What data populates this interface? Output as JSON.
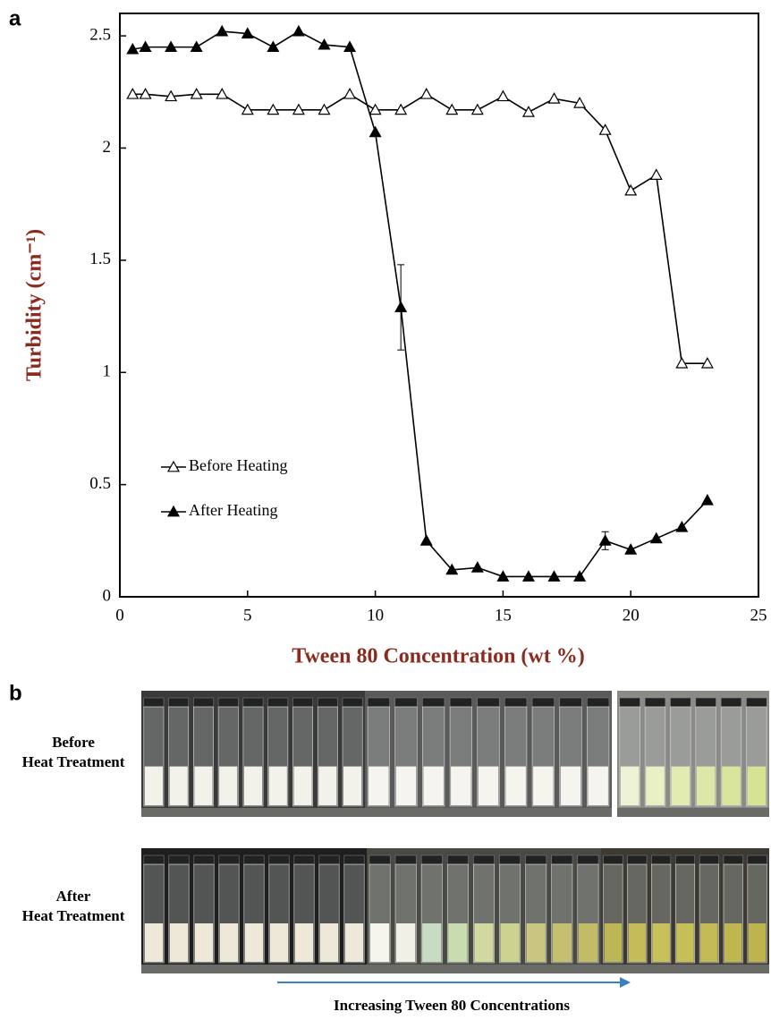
{
  "chart_data": {
    "type": "line",
    "panel_label": "a",
    "xlabel": "Tween 80  Concentration (wt %)",
    "ylabel": "Turbidity (cm⁻¹)",
    "xlim": [
      0,
      25
    ],
    "xticks": [
      0,
      5,
      10,
      15,
      20,
      25
    ],
    "ylim": [
      0,
      2.6
    ],
    "yticks": [
      0,
      0.5,
      1,
      1.5,
      2,
      2.5
    ],
    "grid": false,
    "legend": "lower-left",
    "x": [
      0.5,
      1,
      2,
      3,
      4,
      5,
      6,
      7,
      8,
      9,
      10,
      11,
      12,
      13,
      14,
      15,
      16,
      17,
      18,
      19,
      20,
      21,
      22,
      23
    ],
    "series": [
      {
        "name": "Before Heating",
        "color": "#000000",
        "marker": "open-triangle",
        "values": [
          2.24,
          2.24,
          2.23,
          2.24,
          2.24,
          2.17,
          2.17,
          2.17,
          2.17,
          2.24,
          2.17,
          2.17,
          2.24,
          2.17,
          2.17,
          2.23,
          2.16,
          2.22,
          2.2,
          2.08,
          1.81,
          1.88,
          1.04,
          1.04
        ]
      },
      {
        "name": "After Heating",
        "color": "#000000",
        "marker": "filled-triangle",
        "values": [
          2.44,
          2.45,
          2.45,
          2.45,
          2.52,
          2.51,
          2.45,
          2.52,
          2.46,
          2.45,
          2.07,
          1.29,
          0.25,
          0.12,
          0.13,
          0.09,
          0.09,
          0.09,
          0.09,
          0.25,
          0.21,
          0.26,
          0.31,
          0.43
        ],
        "errors": [
          null,
          null,
          null,
          null,
          null,
          null,
          null,
          null,
          null,
          null,
          null,
          0.19,
          null,
          null,
          null,
          null,
          null,
          null,
          null,
          0.04,
          null,
          null,
          null,
          null
        ]
      }
    ]
  },
  "photos": {
    "panel_label": "b",
    "rows": [
      {
        "label": [
          "Before",
          "Heat Treatment"
        ]
      },
      {
        "label": [
          "After",
          "Heat Treatment"
        ]
      }
    ],
    "arrow_label": "Increasing Tween 80 Concentrations"
  }
}
